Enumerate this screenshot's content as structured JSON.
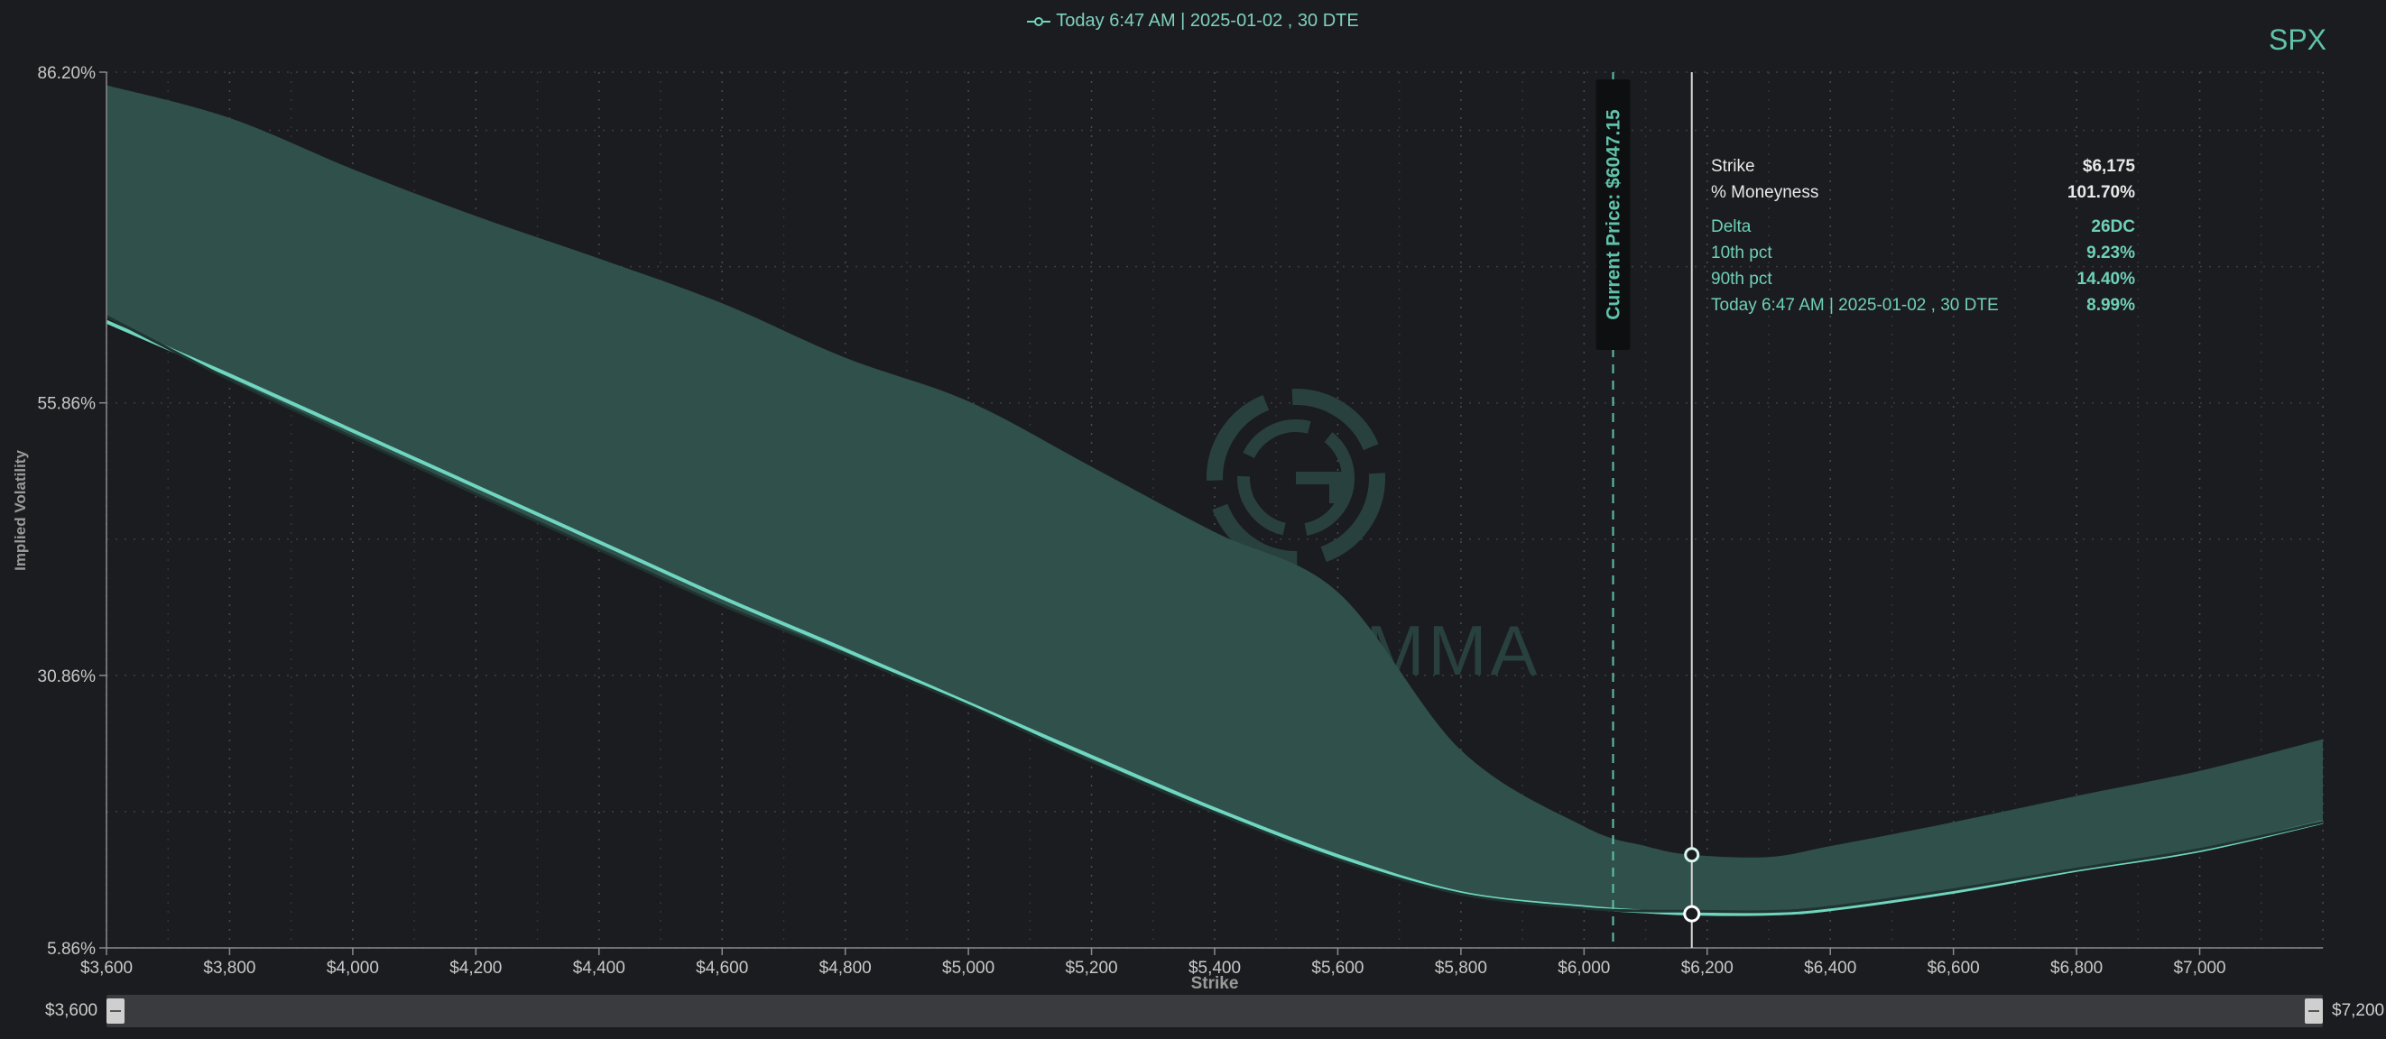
{
  "legend_label": "Today 6:47 AM | 2025-01-02 , 30 DTE",
  "ticker": "SPX",
  "watermark": "SPOTGAMMA",
  "current_price_label": "Current Price: $6047.15",
  "tooltip": {
    "strike_label": "Strike",
    "strike_value": "$6,175",
    "moneyness_label": "% Moneyness",
    "moneyness_value": "101.70%",
    "delta_label": "Delta",
    "delta_value": "26DC",
    "p10_label": "10th pct",
    "p10_value": "9.23%",
    "p90_label": "90th pct",
    "p90_value": "14.40%",
    "series_label": "Today 6:47 AM | 2025-01-02 , 30 DTE",
    "series_value": "8.99%"
  },
  "slider": {
    "min_label": "$3,600",
    "max_label": "$7,200"
  },
  "colors": {
    "band": "#30504c",
    "line": "#6fd6bf",
    "accent": "#5fc2ab",
    "background": "#1b1c1f"
  },
  "chart_data": {
    "type": "area",
    "xlabel": "Strike",
    "ylabel": "Implied Volatility",
    "xlim": [
      3600,
      7200
    ],
    "ylim": [
      5.86,
      86.2
    ],
    "x_ticks": [
      3600,
      3800,
      4000,
      4200,
      4400,
      4600,
      4800,
      5000,
      5200,
      5400,
      5600,
      5800,
      6000,
      6200,
      6400,
      6600,
      6800,
      7000
    ],
    "x_tick_labels": [
      "$3,600",
      "$3,800",
      "$4,000",
      "$4,200",
      "$4,400",
      "$4,600",
      "$4,800",
      "$5,000",
      "$5,200",
      "$5,400",
      "$5,600",
      "$5,800",
      "$6,000",
      "$6,200",
      "$6,400",
      "$6,600",
      "$6,800",
      "$7,000"
    ],
    "y_ticks": [
      5.86,
      30.86,
      55.86,
      86.2
    ],
    "y_tick_labels": [
      "5.86%",
      "30.86%",
      "55.86%",
      "86.20%"
    ],
    "grid": true,
    "current_price": 6047.15,
    "hover_strike": 6175,
    "series": [
      {
        "name": "Today 6:47 AM | 2025-01-02 , 30 DTE",
        "x": [
          3600,
          3800,
          4000,
          4200,
          4400,
          4600,
          4800,
          5000,
          5200,
          5400,
          5600,
          5800,
          6000,
          6100,
          6175,
          6300,
          6400,
          6600,
          6800,
          7000,
          7200
        ],
        "y": [
          63.3,
          58.4,
          53.3,
          48.2,
          43.1,
          38.0,
          33.2,
          28.3,
          23.4,
          18.6,
          14.3,
          10.9,
          9.6,
          9.2,
          8.99,
          8.99,
          9.4,
          11.0,
          13.0,
          14.8,
          17.4
        ]
      },
      {
        "name": "10th pct",
        "x": [
          3600,
          3800,
          4000,
          4200,
          4400,
          4600,
          4800,
          5000,
          5200,
          5400,
          5600,
          5800,
          6000,
          6100,
          6175,
          6300,
          6400,
          6600,
          6800,
          7000,
          7200
        ],
        "y": [
          63.8,
          58.0,
          52.7,
          47.5,
          42.4,
          37.3,
          32.8,
          28.1,
          23.0,
          18.3,
          14.0,
          10.8,
          9.5,
          9.25,
          9.23,
          9.2,
          9.6,
          11.2,
          13.1,
          14.9,
          17.4
        ]
      },
      {
        "name": "90th pct",
        "x": [
          3600,
          3800,
          4000,
          4200,
          4400,
          4600,
          4800,
          5000,
          5200,
          5400,
          5600,
          5800,
          6000,
          6100,
          6175,
          6300,
          6400,
          6600,
          6800,
          7000,
          7200
        ],
        "y": [
          85.0,
          82.0,
          77.3,
          73.0,
          69.1,
          65.0,
          60.0,
          56.0,
          50.0,
          44.0,
          38.5,
          24.0,
          17.0,
          15.2,
          14.4,
          14.2,
          15.2,
          17.4,
          19.8,
          22.1,
          25.0
        ]
      }
    ]
  }
}
